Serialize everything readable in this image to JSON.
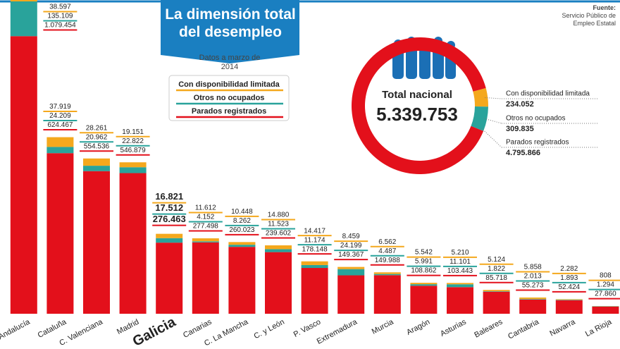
{
  "chart_data": [
    {
      "type": "bar",
      "stacked": true,
      "title": "La dimensión total del desempleo",
      "subtitle": "Datos a marzo de 2014",
      "source_label": "Fuente:",
      "source": "Servicio Público de Empleo Estatal",
      "categories": [
        "Andalucía",
        "Cataluña",
        "C. Valenciana",
        "Madrid",
        "Galicia",
        "Canarias",
        "C. La Mancha",
        "C. y León",
        "P. Vasco",
        "Extremadura",
        "Murcia",
        "Aragón",
        "Asturias",
        "Baleares",
        "Cantabria",
        "Navarra",
        "La Rioja"
      ],
      "highlight_index": 4,
      "ylim": [
        0,
        1220000
      ],
      "series": [
        {
          "name": "Con disponibilidad limitada",
          "color": "#f4a81d",
          "values": [
            38597,
            37919,
            28261,
            19151,
            16821,
            11612,
            10448,
            14880,
            14417,
            8459,
            6562,
            5542,
            5210,
            5124,
            5858,
            2282,
            808
          ],
          "value_labels": [
            "38.597",
            "37.919",
            "28.261",
            "19.151",
            "16.821",
            "11.612",
            "10.448",
            "14.880",
            "14.417",
            "8.459",
            "6.562",
            "5.542",
            "5.210",
            "5.124",
            "5.858",
            "2.282",
            "808"
          ]
        },
        {
          "name": "Otros no ocupados",
          "color": "#29a39b",
          "values": [
            135109,
            24209,
            20962,
            22822,
            17512,
            4152,
            8262,
            11523,
            11174,
            24199,
            4487,
            5991,
            11101,
            1822,
            2013,
            1893,
            1294
          ],
          "value_labels": [
            "135.109",
            "24.209",
            "20.962",
            "22.822",
            "17.512",
            "4.152",
            "8.262",
            "11.523",
            "11.174",
            "24.199",
            "4.487",
            "5.991",
            "11.101",
            "1.822",
            "2.013",
            "1.893",
            "1.294"
          ]
        },
        {
          "name": "Parados registrados",
          "color": "#e3101b",
          "values": [
            1079454,
            624467,
            554536,
            546879,
            276463,
            277498,
            260023,
            239602,
            178148,
            149367,
            149988,
            108862,
            103443,
            85718,
            55273,
            52424,
            27860
          ],
          "value_labels": [
            "1.079.454",
            "624.467",
            "554.536",
            "546.879",
            "276.463",
            "277.498",
            "260.023",
            "239.602",
            "178.148",
            "149.367",
            "149.988",
            "108.862",
            "103.443",
            "85.718",
            "55.273",
            "52.424",
            "27.860"
          ]
        }
      ]
    },
    {
      "type": "pie",
      "donut": true,
      "center_label": "Total nacional",
      "total": {
        "value": 5339753,
        "label": "5.339.753"
      },
      "categories": [
        "Con disponibilidad limitada",
        "Otros no ocupados",
        "Parados registrados"
      ],
      "values": [
        234052,
        309835,
        4795866
      ],
      "value_labels": [
        "234.052",
        "309.835",
        "4.795.866"
      ],
      "colors": [
        "#f4a81d",
        "#29a39b",
        "#e3101b"
      ]
    }
  ]
}
